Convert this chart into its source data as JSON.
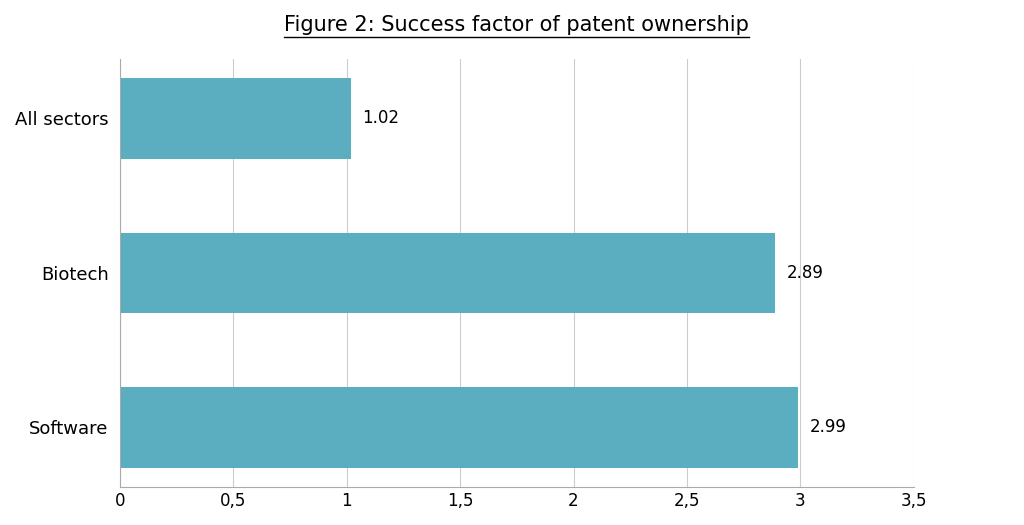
{
  "title": "Figure 2: Success factor of patent ownership",
  "categories": [
    "Software",
    "Biotech",
    "All sectors"
  ],
  "values": [
    2.99,
    2.89,
    1.02
  ],
  "bar_color": "#5BADC0",
  "xlim": [
    0,
    3.5
  ],
  "xticks": [
    0,
    0.5,
    1.0,
    1.5,
    2.0,
    2.5,
    3.0,
    3.5
  ],
  "xtick_labels": [
    "0",
    "0,5",
    "1",
    "1,5",
    "2",
    "2,5",
    "3",
    "3,5"
  ],
  "value_labels": [
    "2.99",
    "2.89",
    "1.02"
  ],
  "background_color": "#ffffff",
  "title_fontsize": 15,
  "tick_fontsize": 12,
  "label_fontsize": 13,
  "value_fontsize": 12,
  "bar_height": 0.52
}
